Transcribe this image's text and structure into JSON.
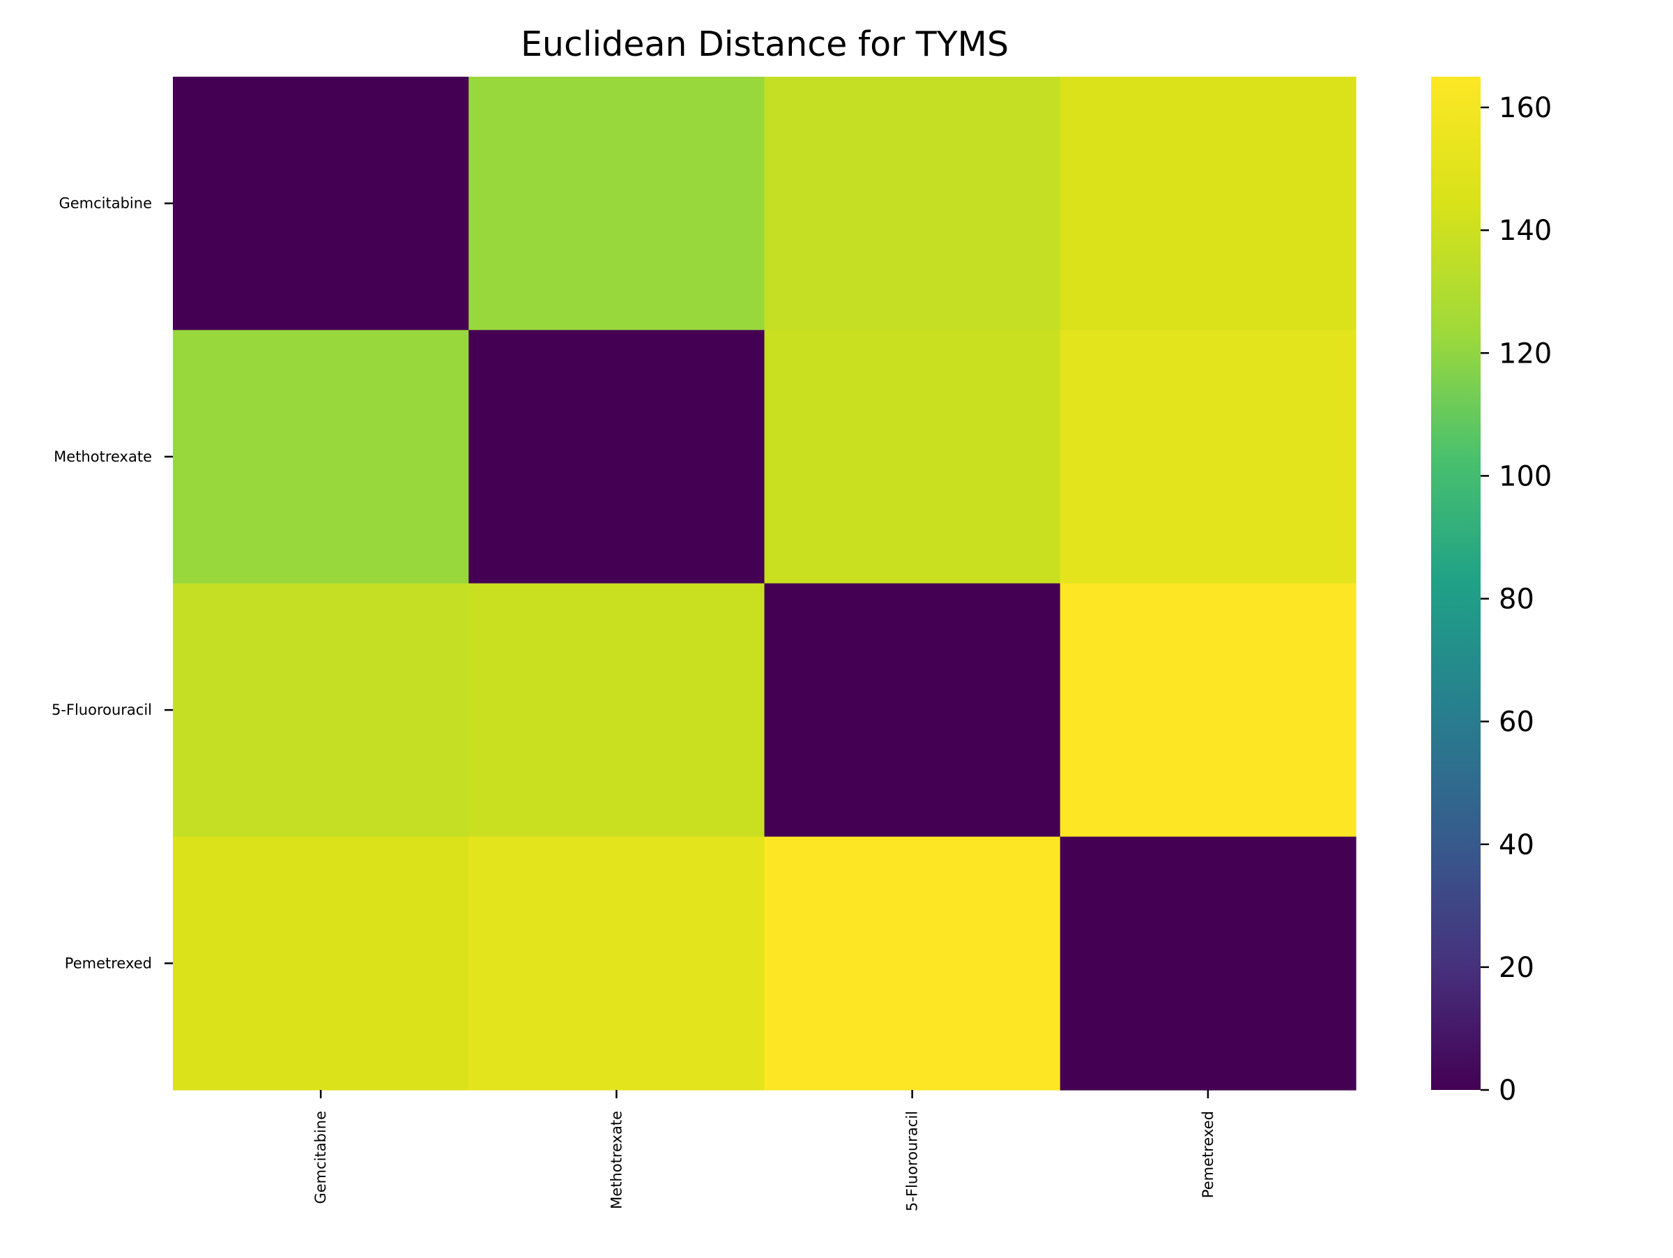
{
  "chart_data": {
    "type": "heatmap",
    "title": "Euclidean Distance for TYMS",
    "xlabel": "",
    "ylabel": "",
    "rows": [
      "Gemcitabine",
      "Methotrexate",
      "5-Fluorouracil",
      "Pemetrexed"
    ],
    "columns": [
      "Gemcitabine",
      "Methotrexate",
      "5-Fluorouracil",
      "Pemetrexed"
    ],
    "values": [
      [
        0,
        122,
        137,
        146
      ],
      [
        122,
        0,
        139,
        151
      ],
      [
        137,
        139,
        0,
        165
      ],
      [
        146,
        151,
        165,
        0
      ]
    ],
    "colormap": "viridis",
    "colorbar": {
      "range": [
        0,
        165
      ],
      "ticks": [
        0,
        20,
        40,
        60,
        80,
        100,
        120,
        140,
        160
      ]
    },
    "grid": false,
    "legend": "colorbar-right"
  }
}
